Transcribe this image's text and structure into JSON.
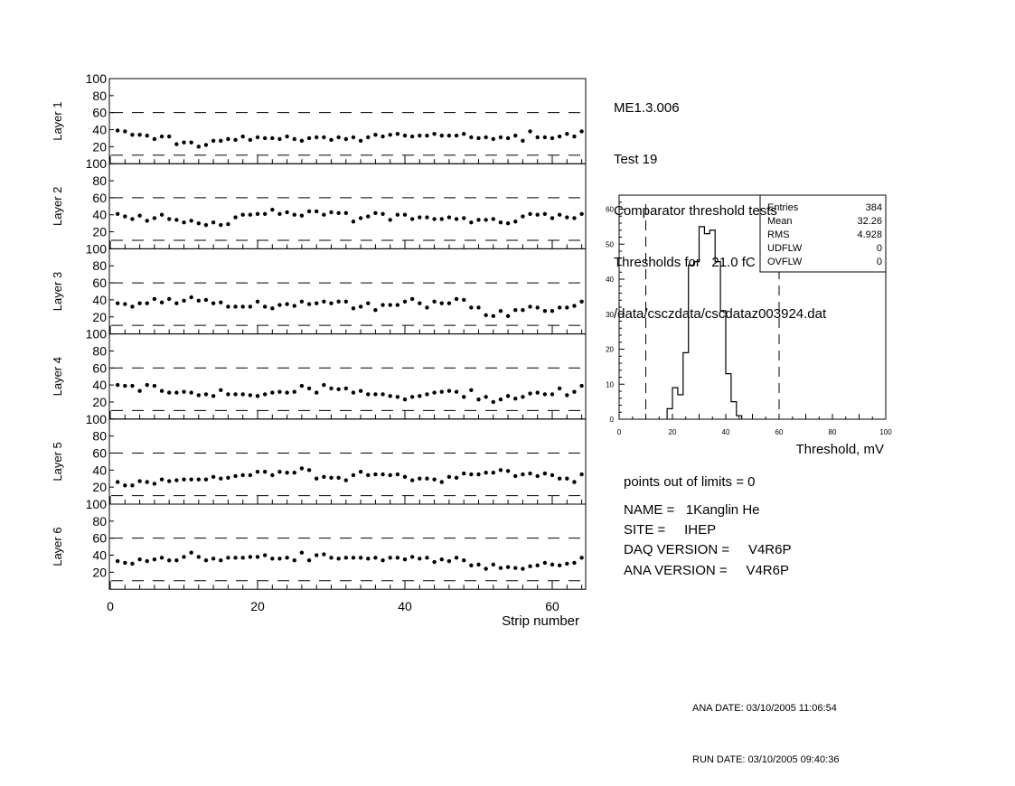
{
  "header": {
    "chamber": "ME1.3.006",
    "test": "Test 19",
    "title": "Comparator threshold tests",
    "thresholds": "Thresholds for   21.0 fC",
    "file": "/data/csczdata/cscdataz003924.dat"
  },
  "chart_data": [
    {
      "type": "scatter",
      "xlabel": "Strip number",
      "xlim": [
        0,
        64.5
      ],
      "ylim": [
        0,
        100
      ],
      "xticks": [
        "0",
        "20",
        "40",
        "60"
      ],
      "yticks": [
        "20",
        "40",
        "60",
        "80",
        "100"
      ],
      "limits": [
        10,
        60
      ],
      "x_start": 1,
      "series": [
        {
          "name": "Layer 1",
          "values": [
            39,
            38,
            34,
            34,
            33,
            29,
            32,
            32,
            23,
            25,
            25,
            20,
            22,
            27,
            27,
            29,
            28,
            32,
            28,
            31,
            30,
            30,
            29,
            32,
            29,
            27,
            30,
            31,
            31,
            28,
            31,
            29,
            31,
            27,
            31,
            34,
            32,
            34,
            35,
            33,
            32,
            33,
            33,
            35,
            33,
            33,
            33,
            35,
            31,
            30,
            31,
            29,
            31,
            30,
            33,
            27,
            38,
            31,
            31,
            30,
            32,
            35,
            32,
            38
          ]
        },
        {
          "name": "Layer 2",
          "values": [
            41,
            38,
            35,
            39,
            33,
            36,
            40,
            35,
            34,
            31,
            33,
            30,
            28,
            31,
            28,
            29,
            37,
            40,
            40,
            41,
            41,
            46,
            41,
            43,
            40,
            39,
            44,
            44,
            40,
            43,
            42,
            42,
            32,
            36,
            38,
            42,
            41,
            34,
            40,
            40,
            35,
            37,
            37,
            35,
            35,
            37,
            35,
            36,
            31,
            34,
            34,
            35,
            31,
            30,
            32,
            38,
            41,
            40,
            41,
            36,
            40,
            37,
            36,
            41
          ]
        },
        {
          "name": "Layer 3",
          "values": [
            36,
            35,
            32,
            36,
            36,
            41,
            37,
            41,
            36,
            39,
            43,
            39,
            40,
            36,
            37,
            32,
            32,
            32,
            32,
            38,
            32,
            30,
            34,
            35,
            33,
            38,
            35,
            36,
            38,
            36,
            38,
            38,
            30,
            32,
            36,
            28,
            34,
            34,
            34,
            38,
            41,
            36,
            31,
            38,
            36,
            36,
            41,
            40,
            31,
            31,
            22,
            21,
            27,
            21,
            28,
            28,
            32,
            31,
            27,
            27,
            31,
            31,
            33,
            38
          ]
        },
        {
          "name": "Layer 4",
          "values": [
            40,
            39,
            39,
            33,
            40,
            39,
            33,
            31,
            31,
            32,
            31,
            28,
            29,
            27,
            34,
            29,
            29,
            29,
            28,
            27,
            29,
            31,
            32,
            31,
            32,
            39,
            36,
            31,
            40,
            36,
            35,
            36,
            31,
            33,
            29,
            29,
            29,
            27,
            26,
            23,
            26,
            27,
            29,
            31,
            32,
            33,
            32,
            26,
            34,
            23,
            26,
            20,
            23,
            27,
            24,
            26,
            30,
            31,
            29,
            29,
            36,
            28,
            32,
            39
          ]
        },
        {
          "name": "Layer 5",
          "values": [
            26,
            22,
            22,
            27,
            26,
            24,
            29,
            27,
            28,
            29,
            29,
            29,
            29,
            32,
            30,
            31,
            33,
            34,
            34,
            38,
            38,
            34,
            38,
            37,
            37,
            42,
            40,
            30,
            32,
            31,
            31,
            28,
            34,
            38,
            34,
            35,
            35,
            34,
            35,
            32,
            28,
            30,
            30,
            29,
            26,
            32,
            31,
            36,
            35,
            35,
            37,
            37,
            40,
            39,
            33,
            35,
            36,
            33,
            36,
            34,
            30,
            30,
            26,
            35
          ]
        },
        {
          "name": "Layer 6",
          "values": [
            33,
            31,
            30,
            35,
            33,
            35,
            37,
            34,
            34,
            38,
            43,
            38,
            34,
            36,
            34,
            37,
            37,
            37,
            38,
            38,
            40,
            36,
            36,
            37,
            34,
            43,
            34,
            40,
            41,
            37,
            36,
            37,
            37,
            37,
            36,
            37,
            34,
            37,
            37,
            35,
            38,
            36,
            37,
            32,
            35,
            33,
            37,
            34,
            28,
            29,
            24,
            29,
            25,
            26,
            25,
            24,
            27,
            28,
            31,
            29,
            28,
            30,
            31,
            37
          ]
        }
      ]
    },
    {
      "type": "bar",
      "subtype": "histogram",
      "xlabel": "Threshold, mV",
      "xlim": [
        0,
        100
      ],
      "ylim": [
        0,
        64
      ],
      "xticks": [
        "0",
        "20",
        "40",
        "60",
        "80",
        "100"
      ],
      "yticks": [
        "0",
        "10",
        "20",
        "30",
        "40",
        "50",
        "60"
      ],
      "limits": [
        10,
        60
      ],
      "bin_width": 2,
      "bins": [
        18,
        20,
        22,
        24,
        26,
        28,
        30,
        32,
        34,
        36,
        38,
        40,
        42,
        44
      ],
      "values": [
        3,
        9,
        7,
        19,
        44,
        45,
        55,
        53,
        54,
        45,
        31,
        13,
        5,
        1
      ],
      "stats": [
        {
          "label": "Entries",
          "value": "384"
        },
        {
          "label": "Mean",
          "value": "32.26"
        },
        {
          "label": "RMS",
          "value": "4.928"
        },
        {
          "label": "UDFLW",
          "value": "0"
        },
        {
          "label": "OVFLW",
          "value": "0"
        }
      ]
    }
  ],
  "summary": {
    "out_of_limits": "points out of limits = 0",
    "name": "NAME =   1Kanglin He",
    "site": "SITE =     IHEP",
    "daq": "DAQ VERSION =     V4R6P",
    "ana": "ANA VERSION =     V4R6P"
  },
  "dates": {
    "ana": "ANA DATE: 03/10/2005 11:06:54",
    "run": "RUN DATE: 03/10/2005 09:40:36"
  }
}
